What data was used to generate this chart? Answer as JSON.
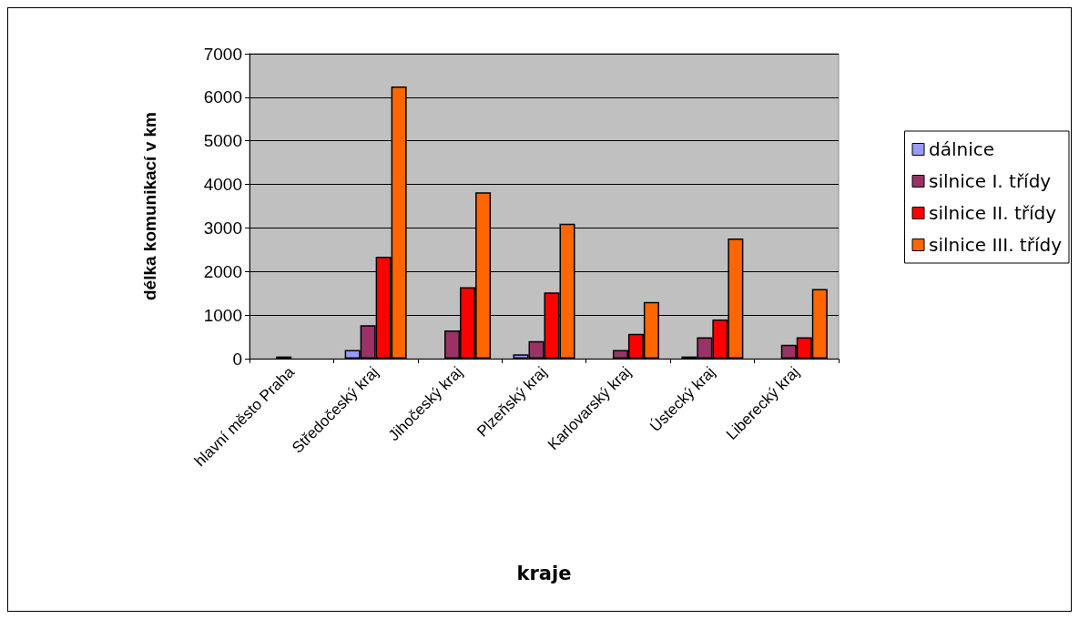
{
  "chart_data": {
    "type": "bar",
    "xlabel": "kraje",
    "ylabel": "délka komunikací v km",
    "categories": [
      "hlavní město Praha",
      "Středočeský kraj",
      "Jihočeský kraj",
      "Plzeňský kraj",
      "Karlovarský kraj",
      "Ústecký kraj",
      "Liberecký kraj"
    ],
    "series": [
      {
        "name": "dálnice",
        "color": "#9999ff",
        "values": [
          null,
          200,
          null,
          100,
          null,
          50,
          null
        ]
      },
      {
        "name": "silnice I. třídy",
        "color": "#993366",
        "values": [
          50,
          770,
          650,
          400,
          200,
          490,
          320
        ]
      },
      {
        "name": "silnice II. třídy",
        "color": "#ff0000",
        "values": [
          null,
          2340,
          1640,
          1520,
          570,
          900,
          490
        ]
      },
      {
        "name": "silnice III. třídy",
        "color": "#ff6600",
        "values": [
          null,
          6250,
          3820,
          3100,
          1300,
          2760,
          1600
        ]
      }
    ],
    "ylim": [
      0,
      7000
    ],
    "yticks": [
      0,
      1000,
      2000,
      3000,
      4000,
      5000,
      6000,
      7000
    ],
    "grid": "y",
    "legend": "right"
  }
}
